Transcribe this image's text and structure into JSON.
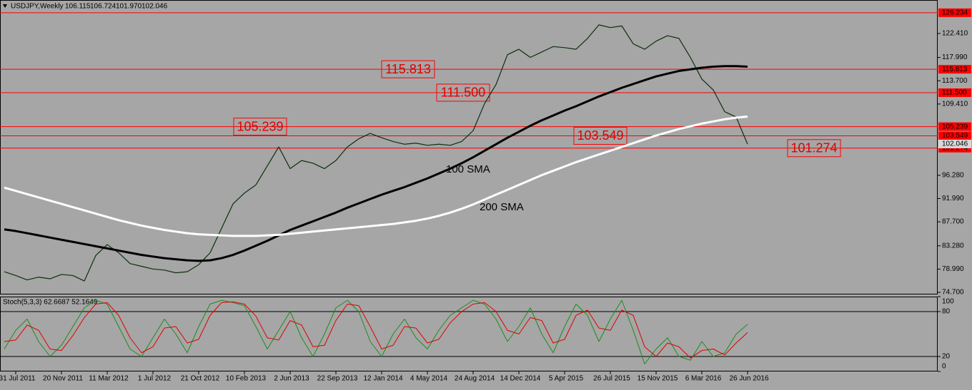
{
  "chart_data": [
    {
      "type": "line",
      "title": "USDJPY,Weekly",
      "ohlc": [
        "106.115",
        "106.724",
        "101.970",
        "102.046"
      ],
      "categories": [
        null,
        "31 Jul 2011",
        null,
        null,
        null,
        "20 Nov 2011",
        null,
        null,
        null,
        "11 Mar 2012",
        null,
        null,
        null,
        "1 Jul 2012",
        null,
        null,
        null,
        "21 Oct 2012",
        null,
        null,
        null,
        "10 Feb 2013",
        null,
        null,
        null,
        "2 Jun 2013",
        null,
        null,
        null,
        "22 Sep 2013",
        null,
        null,
        null,
        "12 Jan 2014",
        null,
        null,
        null,
        "4 May 2014",
        null,
        null,
        null,
        "24 Aug 2014",
        null,
        null,
        null,
        "14 Dec 2014",
        null,
        null,
        null,
        "5 Apr 2015",
        null,
        null,
        null,
        "26 Jul 2015",
        null,
        null,
        null,
        "15 Nov 2015",
        null,
        null,
        null,
        "6 Mar 2016",
        null,
        null,
        null,
        "26 Jun 2016"
      ],
      "series": [
        {
          "color": "#0d2f0d",
          "values": [
            78.5,
            77.8,
            77.0,
            77.5,
            77.2,
            78.0,
            77.8,
            76.8,
            81.5,
            83.5,
            82.0,
            80.0,
            79.5,
            79.0,
            78.8,
            78.3,
            78.5,
            79.8,
            82.0,
            86.5,
            91.0,
            93.0,
            94.5,
            98.0,
            101.5,
            97.5,
            99.0,
            98.5,
            97.5,
            99.0,
            101.5,
            103.0,
            104.0,
            103.2,
            102.5,
            102.0,
            102.2,
            101.8,
            102.0,
            101.8,
            102.5,
            104.5,
            109.5,
            113.0,
            118.5,
            119.5,
            118.0,
            119.0,
            120.0,
            119.8,
            119.5,
            121.5,
            124.0,
            123.5,
            123.8,
            120.5,
            119.5,
            121.0,
            122.0,
            121.5,
            118.0,
            114.0,
            112.0,
            108.0,
            107.0,
            102.0
          ]
        },
        {
          "name": "100 SMA",
          "color": "#000000",
          "values": [
            86.3,
            86.0,
            85.6,
            85.2,
            84.8,
            84.4,
            84.0,
            83.6,
            83.2,
            82.8,
            82.4,
            82.0,
            81.6,
            81.3,
            81.0,
            80.8,
            80.6,
            80.5,
            80.6,
            81.0,
            81.6,
            82.4,
            83.3,
            84.2,
            85.2,
            86.2,
            87.0,
            87.8,
            88.6,
            89.4,
            90.3,
            91.1,
            91.9,
            92.7,
            93.4,
            94.1,
            94.9,
            95.7,
            96.6,
            97.5,
            98.5,
            99.6,
            100.8,
            102.0,
            103.2,
            104.3,
            105.4,
            106.4,
            107.3,
            108.2,
            109.0,
            109.9,
            110.8,
            111.6,
            112.4,
            113.1,
            113.8,
            114.5,
            115.0,
            115.5,
            115.8,
            116.1,
            116.3,
            116.4,
            116.4,
            116.3
          ]
        },
        {
          "name": "200 SMA",
          "color": "#ffffff",
          "values": [
            94.0,
            93.4,
            92.8,
            92.2,
            91.6,
            91.0,
            90.4,
            89.8,
            89.2,
            88.6,
            88.0,
            87.5,
            87.0,
            86.6,
            86.2,
            85.9,
            85.6,
            85.4,
            85.3,
            85.2,
            85.1,
            85.1,
            85.1,
            85.2,
            85.3,
            85.5,
            85.7,
            85.9,
            86.1,
            86.3,
            86.5,
            86.7,
            86.9,
            87.1,
            87.3,
            87.6,
            87.9,
            88.3,
            88.8,
            89.4,
            90.1,
            90.9,
            91.8,
            92.7,
            93.6,
            94.5,
            95.4,
            96.3,
            97.1,
            97.9,
            98.7,
            99.4,
            100.1,
            100.8,
            101.5,
            102.2,
            102.9,
            103.6,
            104.2,
            104.8,
            105.3,
            105.8,
            106.2,
            106.6,
            106.9,
            107.1
          ]
        }
      ],
      "ylim": [
        74.31,
        128.58
      ],
      "yticks": [
        {
          "value": 74.7,
          "label": "74.700"
        },
        {
          "value": 78.99,
          "label": "78.990"
        },
        {
          "value": 83.28,
          "label": "83.280"
        },
        {
          "value": 87.7,
          "label": "87.700"
        },
        {
          "value": 91.99,
          "label": "91.990"
        },
        {
          "value": 96.28,
          "label": "96.280"
        },
        {
          "value": 109.41,
          "label": "109.410"
        },
        {
          "value": 113.7,
          "label": "113.700"
        },
        {
          "value": 117.99,
          "label": "117.990"
        },
        {
          "value": 122.41,
          "label": "122.410"
        }
      ],
      "levels": [
        {
          "value": 126.234,
          "label": "126.234"
        },
        {
          "value": 115.813,
          "label": "115.813"
        },
        {
          "value": 111.5,
          "label": "111.500"
        },
        {
          "value": 105.239,
          "label": "105.239"
        },
        {
          "value": 103.549,
          "label": "103.549"
        },
        {
          "value": 101.274,
          "label": "101.274"
        }
      ],
      "level_color": "#ff0000",
      "last": {
        "value": 102.046,
        "label": "102.046"
      }
    },
    {
      "type": "line",
      "title": "Stoch(5,3,3) 62.6687 52.1649",
      "series": [
        {
          "color": "#1c8c1c",
          "values": [
            30,
            55,
            70,
            40,
            20,
            35,
            60,
            85,
            95,
            90,
            60,
            30,
            20,
            45,
            70,
            50,
            25,
            60,
            90,
            95,
            92,
            88,
            60,
            30,
            55,
            80,
            45,
            20,
            50,
            85,
            95,
            80,
            40,
            20,
            50,
            70,
            45,
            30,
            55,
            75,
            85,
            95,
            90,
            70,
            40,
            60,
            85,
            50,
            25,
            60,
            90,
            75,
            40,
            70,
            95,
            55,
            10,
            30,
            45,
            20,
            15,
            40,
            20,
            25,
            50,
            63
          ]
        },
        {
          "color": "#e00000",
          "values": [
            40,
            42,
            62,
            55,
            30,
            28,
            48,
            72,
            90,
            92,
            75,
            45,
            25,
            33,
            58,
            60,
            38,
            43,
            75,
            92,
            93,
            90,
            74,
            45,
            42,
            68,
            62,
            33,
            35,
            68,
            90,
            88,
            60,
            30,
            35,
            60,
            58,
            38,
            43,
            65,
            80,
            90,
            92,
            80,
            55,
            50,
            72,
            68,
            38,
            43,
            75,
            82,
            58,
            55,
            82,
            75,
            33,
            20,
            38,
            33,
            18,
            28,
            30,
            22,
            38,
            52
          ]
        }
      ],
      "ylim": [
        0,
        100
      ],
      "yticks": [
        0,
        20,
        80,
        100
      ]
    }
  ]
}
